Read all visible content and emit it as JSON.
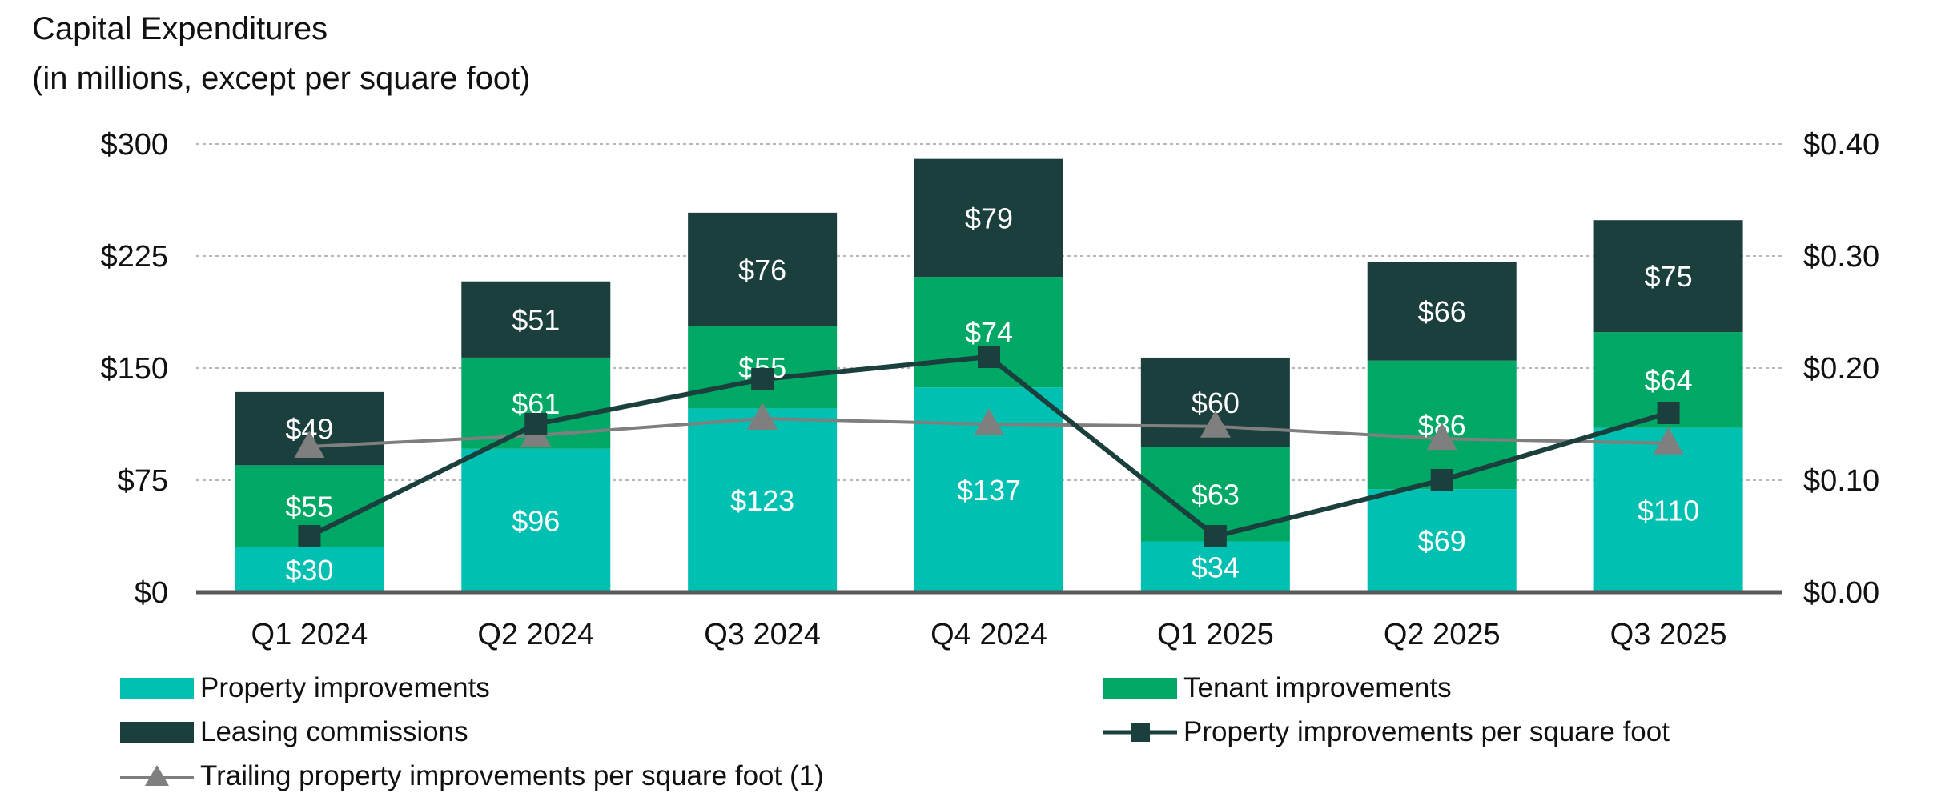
{
  "chart_data": {
    "type": "bar",
    "title": "Capital Expenditures",
    "subtitle": "(in millions, except per square foot)",
    "categories": [
      "Q1 2024",
      "Q2 2024",
      "Q3 2024",
      "Q4 2024",
      "Q1 2025",
      "Q2 2025",
      "Q3 2025"
    ],
    "stacked": true,
    "series": [
      {
        "name": "Property improvements",
        "type": "bar",
        "axis": "left",
        "color": "#00c0b2",
        "values": [
          30,
          96,
          123,
          137,
          34,
          69,
          110
        ],
        "labels": [
          "$30",
          "$96",
          "$123",
          "$137",
          "$34",
          "$69",
          "$110"
        ]
      },
      {
        "name": "Tenant improvements",
        "type": "bar",
        "axis": "left",
        "color": "#00a865",
        "values": [
          55,
          61,
          55,
          74,
          63,
          86,
          64
        ],
        "labels": [
          "$55",
          "$61",
          "$55",
          "$74",
          "$63",
          "$86",
          "$64"
        ]
      },
      {
        "name": "Leasing commissions",
        "type": "bar",
        "axis": "left",
        "color": "#1a3f3c",
        "values": [
          49,
          51,
          76,
          79,
          60,
          66,
          75
        ],
        "labels": [
          "$49",
          "$51",
          "$76",
          "$79",
          "$60",
          "$66",
          "$75"
        ]
      },
      {
        "name": "Property improvements per square foot",
        "type": "line",
        "axis": "right",
        "color": "#1a3f3c",
        "marker": "square",
        "values": [
          0.05,
          0.15,
          0.19,
          0.21,
          0.05,
          0.1,
          0.16
        ]
      },
      {
        "name": "Trailing property improvements per square foot (1)",
        "type": "line",
        "axis": "right",
        "color": "#7f7f7f",
        "marker": "triangle",
        "values": [
          0.13,
          0.14,
          0.155,
          0.15,
          0.148,
          0.137,
          0.133
        ]
      }
    ],
    "y_left": {
      "ticks": [
        "$0",
        "$75",
        "$150",
        "$225",
        "$300"
      ],
      "tick_values": [
        0,
        75,
        150,
        225,
        300
      ],
      "ylim": [
        0,
        300
      ]
    },
    "y_right": {
      "ticks": [
        "$0.00",
        "$0.10",
        "$0.20",
        "$0.30",
        "$0.40"
      ],
      "tick_values": [
        0,
        0.1,
        0.2,
        0.3,
        0.4
      ],
      "ylim": [
        0,
        0.4
      ]
    },
    "grid": true,
    "legend_position": "bottom"
  }
}
